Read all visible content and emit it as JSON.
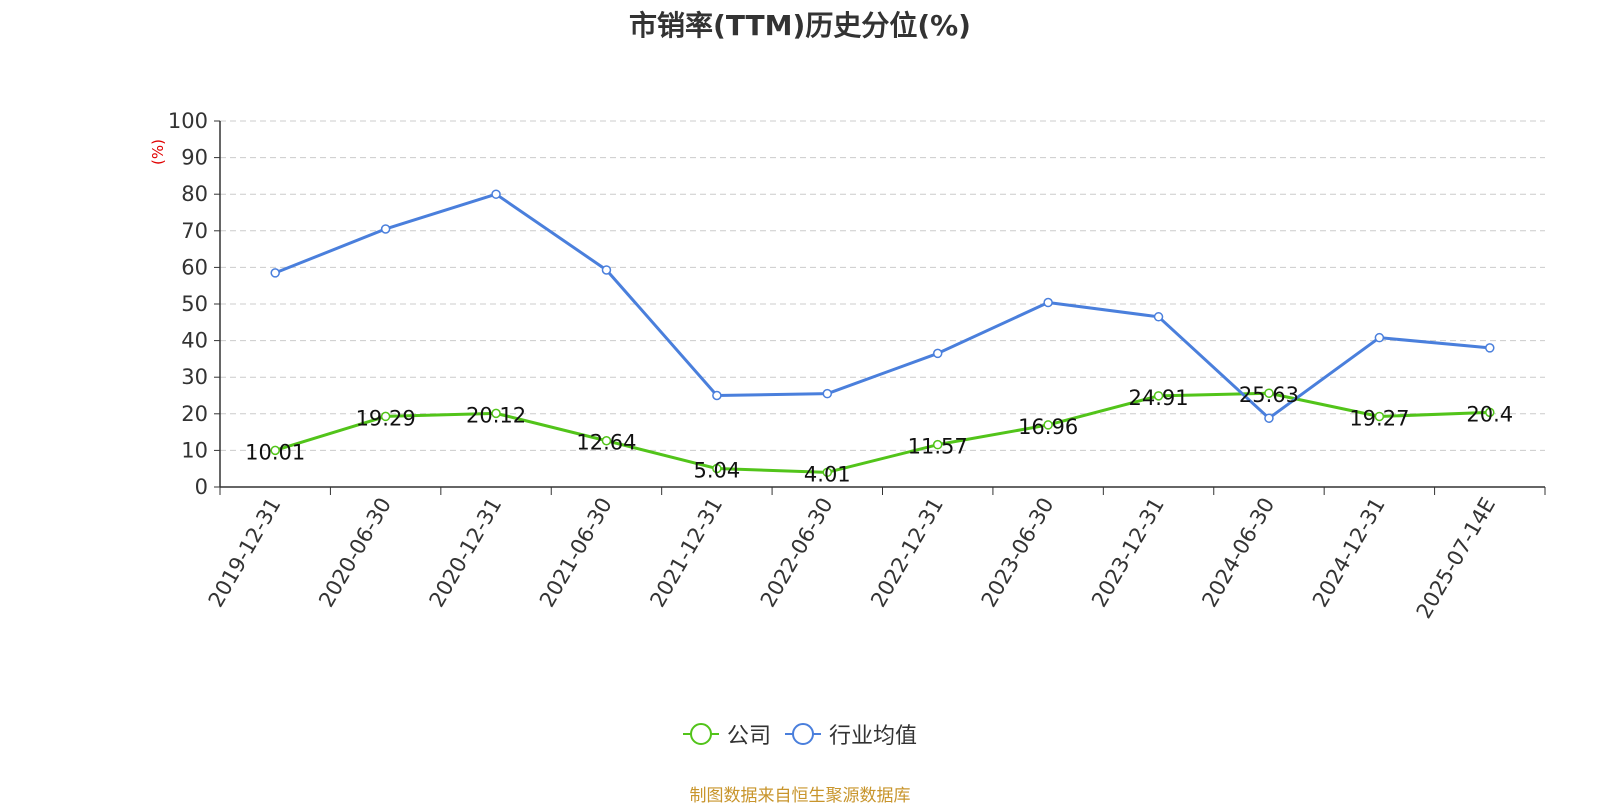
{
  "chart_data": {
    "type": "line",
    "title": "市销率(TTM)历史分位(%)",
    "ylabel": "(%)",
    "ylim": [
      0,
      100
    ],
    "yticks": [
      0,
      10,
      20,
      30,
      40,
      50,
      60,
      70,
      80,
      90,
      100
    ],
    "grid": true,
    "legend_position": "bottom",
    "categories": [
      "2019-12-31",
      "2020-06-30",
      "2020-12-31",
      "2021-06-30",
      "2021-12-31",
      "2022-06-30",
      "2022-12-31",
      "2023-06-30",
      "2023-12-31",
      "2024-06-30",
      "2024-12-31",
      "2025-07-14E"
    ],
    "series": [
      {
        "name": "公司",
        "color": "#52c41a",
        "values": [
          10.01,
          19.29,
          20.12,
          12.64,
          5.04,
          4.01,
          11.57,
          16.96,
          24.91,
          25.63,
          19.27,
          20.4
        ],
        "labels": [
          "10.01",
          "19.29",
          "20.12",
          "12.64",
          "5.04",
          "4.01",
          "11.57",
          "16.96",
          "24.91",
          "25.63",
          "19.27",
          "20.4"
        ]
      },
      {
        "name": "行业均值",
        "color": "#4a7fdc",
        "values": [
          58.5,
          70.5,
          80,
          59.3,
          25,
          25.5,
          36.5,
          50.4,
          46.5,
          18.8,
          40.8,
          38
        ]
      }
    ]
  },
  "source_text": "制图数据来自恒生聚源数据库"
}
